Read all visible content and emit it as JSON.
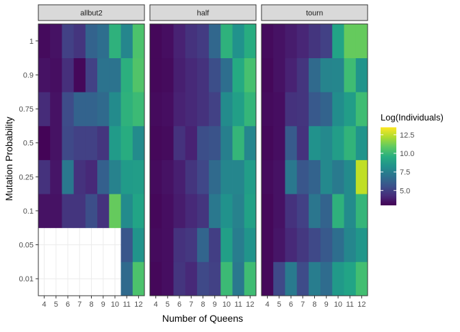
{
  "chart_data": {
    "type": "heatmap",
    "facet_by": "selection",
    "facets": [
      "allbut2",
      "half",
      "tourn"
    ],
    "x": [
      4,
      5,
      6,
      7,
      8,
      9,
      10,
      11,
      12
    ],
    "x_tick_labels": [
      "4",
      "5",
      "6",
      "7",
      "8",
      "9",
      "10",
      "11",
      "12"
    ],
    "y": [
      "0.01",
      "0.05",
      "0.1",
      "0.25",
      "0.5",
      "0.75",
      "0.9",
      "1"
    ],
    "xlabel": "Number of Queens",
    "ylabel": "Mutation Probability",
    "legend": {
      "title": "Log(Individuals)",
      "range": [
        3,
        13.5
      ],
      "ticks": [
        5.0,
        7.5,
        10.0,
        12.5
      ],
      "tick_labels": [
        "5.0",
        "7.5",
        "10.0",
        "12.5"
      ],
      "colormap": "viridis"
    },
    "values": {
      "allbut2": {
        "1": [
          3.3,
          3.5,
          5.0,
          4.6,
          6.3,
          6.8,
          9.7,
          7.8,
          10.5
        ],
        "0.9": [
          3.5,
          3.4,
          4.4,
          3.2,
          5.0,
          7.0,
          7.0,
          9.6,
          10.6
        ],
        "0.75": [
          4.3,
          3.5,
          5.4,
          6.3,
          6.3,
          6.6,
          8.0,
          9.7,
          10.1
        ],
        "0.5": [
          3.1,
          3.5,
          5.3,
          5.0,
          5.0,
          4.6,
          8.7,
          9.5,
          8.0
        ],
        "0.25": [
          4.5,
          3.6,
          7.2,
          4.5,
          4.2,
          6.2,
          7.6,
          8.7,
          8.8
        ],
        "0.1": [
          3.5,
          3.5,
          4.6,
          4.6,
          5.5,
          4.5,
          11.0,
          8.0,
          9.1
        ],
        "0.05": [
          null,
          null,
          null,
          null,
          null,
          null,
          null,
          5.8,
          8.4
        ],
        "0.01": [
          null,
          null,
          null,
          null,
          null,
          null,
          null,
          6.6,
          10.5
        ]
      },
      "half": {
        "1": [
          3.2,
          3.4,
          4.0,
          4.5,
          4.8,
          6.5,
          9.7,
          8.3,
          9.5
        ],
        "0.9": [
          3.2,
          3.3,
          3.9,
          4.2,
          4.5,
          5.5,
          6.8,
          9.4,
          10.4
        ],
        "0.75": [
          3.3,
          3.4,
          4.0,
          4.2,
          4.5,
          5.0,
          8.0,
          8.9,
          9.9
        ],
        "0.5": [
          3.2,
          3.3,
          4.5,
          4.0,
          5.5,
          5.7,
          7.5,
          9.9,
          7.8
        ],
        "0.25": [
          3.3,
          3.5,
          3.9,
          4.6,
          5.2,
          6.6,
          7.8,
          7.8,
          8.8
        ],
        "0.1": [
          3.2,
          3.4,
          3.8,
          4.2,
          4.6,
          7.2,
          8.3,
          7.6,
          9.0
        ],
        "0.05": [
          3.3,
          3.4,
          4.5,
          4.7,
          6.4,
          4.9,
          8.9,
          7.4,
          8.4
        ],
        "0.01": [
          3.2,
          3.4,
          4.6,
          4.2,
          5.3,
          5.0,
          10.1,
          7.2,
          10.2
        ]
      },
      "tourn": {
        "1": [
          3.3,
          3.5,
          3.8,
          4.1,
          4.6,
          5.0,
          9.1,
          11.0,
          11.0
        ],
        "0.9": [
          3.2,
          3.5,
          4.0,
          4.6,
          6.6,
          7.7,
          7.8,
          10.2,
          8.4
        ],
        "0.75": [
          3.3,
          3.4,
          4.5,
          4.6,
          5.9,
          6.3,
          8.1,
          8.8,
          10.2
        ],
        "0.5": [
          3.2,
          3.4,
          6.0,
          4.5,
          8.3,
          7.9,
          8.8,
          9.8,
          8.4
        ],
        "0.25": [
          3.3,
          3.5,
          7.2,
          5.8,
          6.3,
          7.9,
          7.3,
          8.0,
          12.5
        ],
        "0.1": [
          3.2,
          3.5,
          4.5,
          5.0,
          7.1,
          6.3,
          9.7,
          8.0,
          9.9
        ],
        "0.05": [
          3.2,
          3.6,
          4.2,
          4.7,
          5.3,
          5.9,
          6.8,
          7.8,
          8.5
        ],
        "0.01": [
          3.2,
          5.3,
          7.3,
          5.4,
          7.4,
          6.7,
          8.6,
          9.1,
          10.3
        ]
      }
    }
  }
}
